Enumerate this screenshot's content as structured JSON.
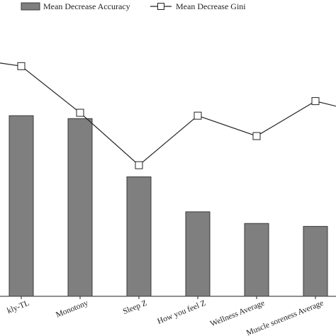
{
  "chart_data": {
    "type": "bar",
    "categories": [
      "Weekly-TL",
      "Monotony",
      "Sleep Z",
      "How you feel Z",
      "Wellness Average",
      "Muscle soreness Average"
    ],
    "visible_category_labels": [
      "kly-TL",
      "Monotony",
      "Sleep Z",
      "How you feel Z",
      "Wellness Average",
      "Muscle soreness Average"
    ],
    "series": [
      {
        "name": "Mean Decrease Accuracy",
        "kind": "bar",
        "values": [
          0.62,
          0.61,
          0.41,
          0.29,
          0.25,
          0.24
        ]
      },
      {
        "name": "Mean Decrease Gini",
        "kind": "line",
        "values": [
          0.79,
          0.63,
          0.45,
          0.62,
          0.55,
          0.67
        ]
      }
    ],
    "line_extensions": {
      "left": 0.82,
      "right": 0.62
    },
    "ylim": [
      0,
      1
    ],
    "title": "",
    "xlabel": "",
    "ylabel": "",
    "grid": false,
    "legend_position": "top",
    "colors": {
      "bar_fill": "#7f7f7f",
      "bar_stroke": "#3a3a3a",
      "line": "#222222",
      "marker_fill": "#ffffff"
    }
  }
}
